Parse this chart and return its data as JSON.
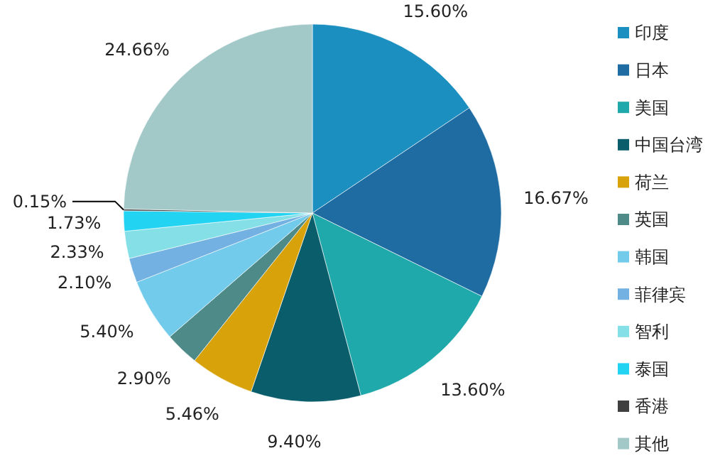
{
  "chart_data": {
    "type": "pie",
    "categories": [
      "印度",
      "日本",
      "美国",
      "中国台湾",
      "荷兰",
      "英国",
      "韩国",
      "菲律宾",
      "智利",
      "泰国",
      "香港",
      "其他"
    ],
    "values": [
      15.6,
      16.67,
      13.6,
      9.4,
      5.46,
      2.9,
      5.4,
      2.1,
      2.33,
      1.73,
      0.15,
      24.66
    ],
    "colors": [
      "#1b8fc0",
      "#1f6ca3",
      "#20a9aa",
      "#0a5e6b",
      "#d8a20b",
      "#4e8a88",
      "#73cbec",
      "#74b1e3",
      "#84dfe6",
      "#22d3f2",
      "#404040",
      "#a3c8c8"
    ],
    "value_labels": [
      "15.60%",
      "16.67%",
      "13.60%",
      "9.40%",
      "5.46%",
      "2.90%",
      "5.40%",
      "2.10%",
      "2.33%",
      "1.73%",
      "0.15%",
      "24.66%"
    ],
    "legend": "right"
  }
}
